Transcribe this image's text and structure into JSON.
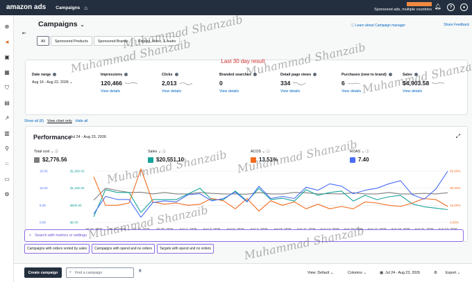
{
  "topbar": {
    "logo": "amazon ads",
    "section": "Campaigns",
    "account_label": "Sponsored ads, multiple countries",
    "accent_color": "#f08a41"
  },
  "header": {
    "title": "Campaigns",
    "learn_link": "Learn about Campaign manager",
    "feedback_link": "Share Feedback"
  },
  "tabs": [
    "All",
    "Sponsored Products",
    "Sponsored Brands",
    "Display, Video, & Audio"
  ],
  "summary": {
    "banner": "Last 30 day result",
    "date_range_label": "Date range",
    "date_range_value": "Aug 16 - Aug 22, 2026",
    "view_details": "View details",
    "stats": [
      {
        "label": "Impressions",
        "value": "120,466"
      },
      {
        "label": "Clicks",
        "value": "2,013"
      },
      {
        "label": "Branded searches",
        "value": "0"
      },
      {
        "label": "Detail page views",
        "value": "334"
      },
      {
        "label": "Purchases (new to brand)",
        "value": "6"
      },
      {
        "label": "Sales",
        "value": "$4,903.58"
      }
    ]
  },
  "links": {
    "show_all": "Show all (8)",
    "view_chart_only": "View chart only",
    "hide_all": "Hide all"
  },
  "performance": {
    "title": "Performance",
    "date": "Jul 24 - Aug 23, 2026",
    "metrics": [
      {
        "label": "Total cost",
        "value": "$2,776.56",
        "color": "#7d7d7d"
      },
      {
        "label": "Sales",
        "value": "$20,551.10",
        "color": "#15a39a"
      },
      {
        "label": "ACOS",
        "value": "13.51%",
        "color": "#f26b1d"
      },
      {
        "label": "ROAS",
        "value": "7.40",
        "color": "#4a6cf7"
      }
    ]
  },
  "chart_data": {
    "type": "line",
    "x": [
      "Jul 24, 2026",
      "Jul 25, 2026",
      "Jul 26, 2026",
      "Jul 27, 2026",
      "Jul 28, 2026",
      "Jul 29, 2026",
      "Jul 30, 2026",
      "Jul 31, 2026",
      "Aug 1, 2026",
      "Aug 2, 2026",
      "Aug 3, 2026",
      "Aug 4, 2026",
      "Aug 5, 2026",
      "Aug 6, 2026",
      "Aug 7, 2026",
      "Aug 8, 2026",
      "Aug 9, 2026",
      "Aug 10, 2026",
      "Aug 11, 2026",
      "Aug 12, 2026",
      "Aug 13, 2026",
      "Aug 14, 2026",
      "Aug 15, 2026",
      "Aug 16, 2026",
      "Aug 17, 2026",
      "Aug 18, 2026",
      "Aug 19, 2026",
      "Aug 20, 2026",
      "Aug 21, 2026",
      "Aug 22, 2026",
      "Aug 23, 2026"
    ],
    "x_tick_labels": [
      "Jul 24, 2026",
      "Jul 26, 2026",
      "Jul 28, 2026",
      "Jul 30, 2026",
      "Aug 1, 2026",
      "Aug 3, 2026",
      "Aug 5, 2026",
      "Aug 7, 2026",
      "Aug 9, 2026",
      "Aug 11, 2026",
      "Aug 13, 2026",
      "Aug 15, 2026",
      "Aug 17, 2026",
      "Aug 19, 2026",
      "Aug 21, 2026",
      "Aug 23, 2026"
    ],
    "axes": {
      "left1": {
        "ticks": [
          "0.00",
          "5.00",
          "10.00",
          "15.00"
        ],
        "color": "#4a6cf7"
      },
      "left2": {
        "ticks": [
          "$0.00",
          "$600.00",
          "$1,200.00",
          "$1,800.00"
        ],
        "color": "#15a39a"
      },
      "right": {
        "ticks": [
          "0.00%",
          "15.00%",
          "30.00%",
          "45.00%"
        ],
        "color": "#f26b1d"
      }
    },
    "series": [
      {
        "name": "Total cost",
        "color": "#7d7d7d",
        "axis": "left2",
        "values": [
          780,
          1200,
          1120,
          1050,
          1060,
          1000,
          1050,
          1000,
          1000,
          1050,
          1020,
          1000,
          1000,
          990,
          1050,
          1000,
          1000,
          1050,
          1040,
          1000,
          1010,
          1000,
          1040,
          1000,
          1000,
          1050,
          1000,
          1000,
          1020,
          1000,
          1040
        ]
      },
      {
        "name": "Sales",
        "color": "#15a39a",
        "axis": "left2",
        "values": [
          200,
          1150,
          1050,
          1050,
          350,
          800,
          800,
          800,
          1000,
          1200,
          800,
          800,
          1100,
          750,
          1200,
          800,
          850,
          750,
          1150,
          950,
          1050,
          1100,
          750,
          950,
          800,
          900,
          950,
          650,
          550,
          500,
          450
        ]
      },
      {
        "name": "ACOS",
        "color": "#f26b1d",
        "axis": "right",
        "values": [
          40,
          15,
          15,
          17,
          47,
          18,
          16,
          17,
          15,
          16,
          21,
          19,
          12,
          21,
          10,
          19,
          15,
          18,
          12,
          16,
          12,
          14,
          12,
          18,
          17,
          15,
          14,
          17,
          21,
          20,
          14
        ]
      },
      {
        "name": "ROAS",
        "color": "#4a6cf7",
        "axis": "left1",
        "values": [
          2.5,
          7.6,
          6.7,
          6.7,
          1.5,
          5.8,
          6.3,
          6.0,
          8.1,
          8.4,
          6.3,
          7.0,
          8.9,
          6.0,
          10.6,
          7.0,
          7.6,
          7.0,
          10.3,
          9.4,
          11.3,
          10.6,
          8.4,
          9.4,
          10.0,
          11.3,
          12.2,
          8.1,
          6.8,
          9.8,
          15.0
        ]
      }
    ]
  },
  "search": {
    "placeholder": "Search with metrics or settings"
  },
  "chips": [
    "Campaigns with orders sorted by sales",
    "Campaigns with spend and no orders",
    "Targets with spend and no orders"
  ],
  "footer": {
    "create": "Create campaign",
    "find_placeholder": "Find a campaign",
    "view": "View: Default",
    "columns": "Columns",
    "date": "Jul 24 - Aug 23, 2026",
    "export": "Export"
  },
  "watermark": "Muhammad Shanzaib"
}
